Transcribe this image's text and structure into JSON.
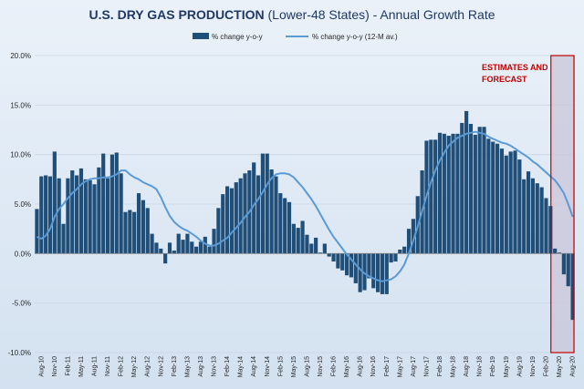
{
  "chart_data": {
    "type": "bar",
    "title_bold": "U.S. DRY GAS PRODUCTION",
    "title_rest": " (Lower-48 States) - Annual Growth Rate",
    "ylim": [
      -10,
      20
    ],
    "y_ticks": [
      "20.0%",
      "15.0%",
      "10.0%",
      "5.0%",
      "0.0%",
      "-5.0%",
      "-10.0%"
    ],
    "y_tick_values": [
      20,
      15,
      10,
      5,
      0,
      -5,
      -10
    ],
    "x_tick_labels": [
      "Aug-10",
      "Nov-10",
      "Feb-11",
      "May-11",
      "Aug-11",
      "Nov-11",
      "Feb-12",
      "May-12",
      "Aug-12",
      "Nov-12",
      "Feb-13",
      "May-13",
      "Aug-13",
      "Nov-13",
      "Feb-14",
      "May-14",
      "Aug-14",
      "Nov-14",
      "Feb-15",
      "May-15",
      "Aug-15",
      "Nov-15",
      "Feb-16",
      "May-16",
      "Aug-16",
      "Nov-16",
      "Feb-17",
      "May-17",
      "Aug-17",
      "Nov-17",
      "Feb-18",
      "May-18",
      "Aug-18",
      "Nov-18",
      "Feb-19",
      "May-19",
      "Aug-19",
      "Nov-19",
      "Feb-20",
      "May-20",
      "Aug-20"
    ],
    "legend_position": "top",
    "colors": {
      "bars": "#1f4e79",
      "line": "#5b9bd5",
      "forecast_border": "#c00000",
      "forecast_fill": "#c9c5d9"
    },
    "annotation": "ESTIMATES AND\nFORECAST",
    "forecast_start_index": 117,
    "series": [
      {
        "name": "% change y-o-y",
        "type": "bar",
        "values": [
          4.5,
          7.8,
          7.9,
          7.8,
          10.3,
          7.6,
          3.0,
          7.6,
          8.4,
          7.9,
          8.6,
          7.5,
          7.4,
          7.0,
          8.7,
          10.1,
          7.6,
          10.0,
          10.2,
          8.1,
          4.2,
          4.4,
          4.2,
          6.1,
          5.4,
          4.6,
          2.0,
          1.1,
          0.5,
          -1.0,
          1.1,
          0.3,
          2.0,
          1.4,
          2.0,
          1.2,
          0.7,
          1.2,
          1.7,
          0.7,
          2.5,
          4.6,
          6.0,
          6.8,
          6.6,
          7.2,
          7.6,
          8.1,
          8.4,
          9.2,
          7.9,
          10.1,
          10.1,
          8.5,
          7.8,
          6.1,
          5.6,
          5.2,
          3.0,
          2.6,
          3.3,
          1.9,
          1.0,
          1.6,
          0.1,
          1.0,
          -0.3,
          -0.8,
          -1.5,
          -1.7,
          -2.2,
          -2.4,
          -3.0,
          -3.9,
          -3.7,
          -2.5,
          -3.5,
          -3.9,
          -4.1,
          -4.1,
          -0.9,
          -0.8,
          0.4,
          0.7,
          2.5,
          3.5,
          5.8,
          8.4,
          11.4,
          11.5,
          11.5,
          12.2,
          12.1,
          11.9,
          12.1,
          12.1,
          13.2,
          14.4,
          13.1,
          12.0,
          12.8,
          12.8,
          11.6,
          11.3,
          11.1,
          10.6,
          9.9,
          10.3,
          10.4,
          9.5,
          7.5,
          8.3,
          7.6,
          7.1,
          6.7,
          5.6,
          4.8,
          0.5,
          0.1,
          -2.1,
          -3.3,
          -6.7
        ],
        "note": "Bars for Jul-10 through Aug-20; the values follow the positions read off the y axis"
      },
      {
        "name": "% change y-o-y (12-M av.)",
        "type": "line",
        "values": [
          1.7,
          1.5,
          1.8,
          2.5,
          3.7,
          4.5,
          5.0,
          5.6,
          6.1,
          6.5,
          7.0,
          7.3,
          7.5,
          7.6,
          7.6,
          7.7,
          7.7,
          7.8,
          8.0,
          8.4,
          8.4,
          8.0,
          7.7,
          7.5,
          7.2,
          7.0,
          6.8,
          6.5,
          5.7,
          4.7,
          3.8,
          3.2,
          2.8,
          2.5,
          2.3,
          2.0,
          1.7,
          1.3,
          1.0,
          0.8,
          0.8,
          1.0,
          1.3,
          1.6,
          2.1,
          2.6,
          3.1,
          3.7,
          4.2,
          4.9,
          5.5,
          6.2,
          7.0,
          7.6,
          8.0,
          8.1,
          8.1,
          8.0,
          7.7,
          7.2,
          6.7,
          6.1,
          5.5,
          4.8,
          4.0,
          3.2,
          2.4,
          1.7,
          1.1,
          0.5,
          -0.1,
          -0.6,
          -1.1,
          -1.6,
          -2.0,
          -2.3,
          -2.5,
          -2.7,
          -2.8,
          -2.7,
          -2.6,
          -2.3,
          -1.8,
          -1.1,
          0.0,
          1.3,
          2.7,
          4.3,
          5.8,
          7.2,
          8.4,
          9.4,
          10.2,
          10.9,
          11.3,
          11.7,
          11.9,
          12.1,
          12.2,
          12.3,
          12.2,
          12.1,
          11.8,
          11.6,
          11.4,
          11.2,
          11.1,
          10.9,
          10.6,
          10.3,
          10.0,
          9.7,
          9.3,
          9.0,
          8.6,
          8.2,
          7.8,
          7.4,
          6.8,
          6.1,
          5.0,
          3.7
        ]
      }
    ]
  }
}
